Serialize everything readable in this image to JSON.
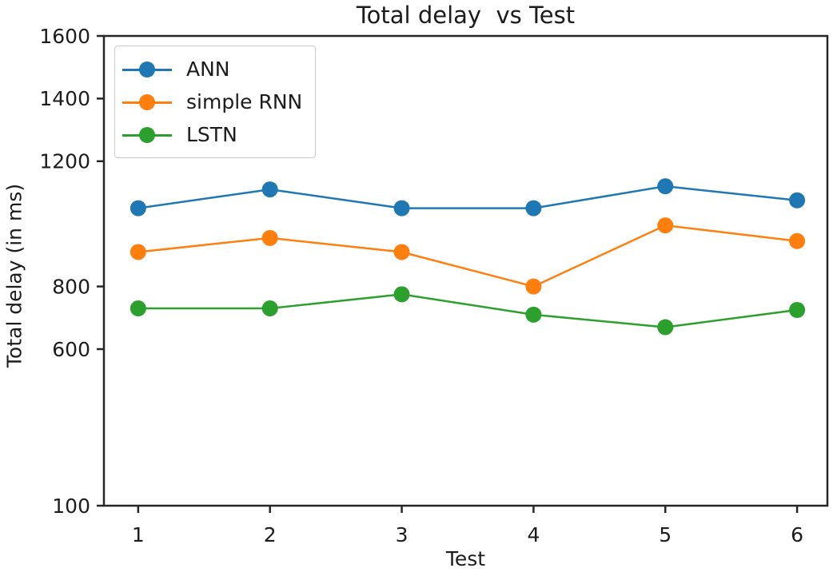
{
  "chart_data": {
    "type": "line",
    "title": "Total delay  vs Test",
    "xlabel": "Test",
    "ylabel": "Total delay (in ms)",
    "x": [
      1,
      2,
      3,
      4,
      5,
      6
    ],
    "xtick_labels": [
      "1",
      "2",
      "3",
      "4",
      "5",
      "6"
    ],
    "yticks": [
      100,
      600,
      800,
      1200,
      1400,
      1600
    ],
    "ytick_labels": [
      "100",
      "600",
      "800",
      "1200",
      "1400",
      "1600"
    ],
    "xlim": [
      0.74,
      6.23
    ],
    "ylim": [
      100,
      1600
    ],
    "grid": false,
    "legend_position": "upper left",
    "axis_color": "#262626",
    "series": [
      {
        "name": "ANN",
        "color": "#1f77b4",
        "values": [
          1050,
          1110,
          1050,
          1050,
          1120,
          1075
        ]
      },
      {
        "name": "simple RNN",
        "color": "#ff7f0e",
        "values": [
          910,
          955,
          910,
          800,
          995,
          945
        ]
      },
      {
        "name": "LSTN",
        "color": "#2ca02c",
        "values": [
          730,
          730,
          775,
          710,
          670,
          725
        ]
      }
    ]
  }
}
